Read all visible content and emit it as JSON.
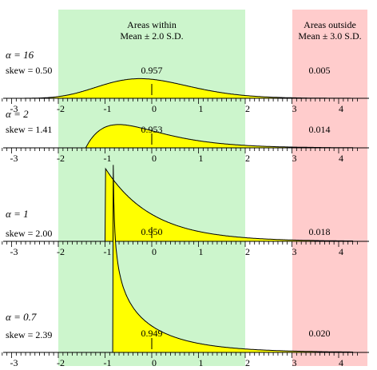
{
  "chart_data": {
    "type": "area",
    "x_range": [
      -3,
      4.5
    ],
    "tick_labels": [
      "-3",
      "-2",
      "-1",
      "0",
      "1",
      "2",
      "3",
      "4"
    ],
    "band_within": {
      "range": [
        -2,
        2
      ],
      "label_line1": "Areas within",
      "label_line2": "Mean ± 2.0 S.D.",
      "color": "#ccf5cc"
    },
    "band_outside": {
      "range": [
        3,
        4.5
      ],
      "label_line1": "Areas outside",
      "label_line2": "Mean ± 3.0 S.D.",
      "color": "#ffcccc"
    },
    "fill_color": "#ffff00",
    "panels": [
      {
        "alpha": 16,
        "alpha_label": "α = 16",
        "skew_label": "skew = 0.50",
        "skew": 0.5,
        "within_label": "0.957",
        "outside_label": "0.005",
        "within": 0.957,
        "outside": 0.005
      },
      {
        "alpha": 2,
        "alpha_label": "α = 2",
        "skew_label": "skew = 1.41",
        "skew": 1.41,
        "within_label": "0.953",
        "outside_label": "0.014",
        "within": 0.953,
        "outside": 0.014
      },
      {
        "alpha": 1,
        "alpha_label": "α = 1",
        "skew_label": "skew = 2.00",
        "skew": 2.0,
        "within_label": "0.950",
        "outside_label": "0.018",
        "within": 0.95,
        "outside": 0.018
      },
      {
        "alpha": 0.7,
        "alpha_label": "α = 0.7",
        "skew_label": "skew = 2.39",
        "skew": 2.39,
        "within_label": "0.949",
        "outside_label": "0.020",
        "within": 0.949,
        "outside": 0.02
      }
    ]
  }
}
